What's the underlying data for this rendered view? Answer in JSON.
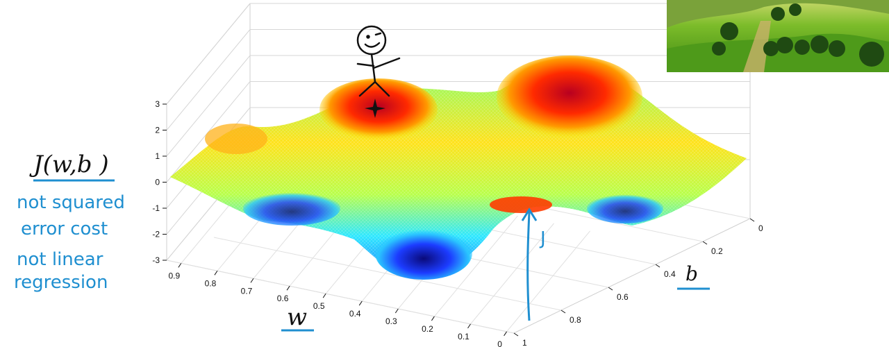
{
  "chart_data": {
    "type": "surface",
    "title": "",
    "z_axis": {
      "label": "J(w,b )",
      "ticks": [
        "3",
        "2",
        "1",
        "0",
        "-1",
        "-2",
        "-3"
      ],
      "range": [
        -3,
        3
      ]
    },
    "w_axis": {
      "label": "w",
      "ticks": [
        "0.9",
        "0.8",
        "0.7",
        "0.6",
        "0.5",
        "0.4",
        "0.3",
        "0.2",
        "0.1",
        "0"
      ],
      "range": [
        0,
        1
      ]
    },
    "b_axis": {
      "label": "b",
      "ticks": [
        "0",
        "0.2",
        "0.4",
        "0.6",
        "0.8",
        "1"
      ],
      "range": [
        0,
        1
      ]
    },
    "grid": true,
    "colormap": "jet",
    "annotations": {
      "side_note": [
        "not squared",
        "error cost",
        "not linear",
        "regression"
      ],
      "arrow_label": "J"
    },
    "colors": {
      "annotation_blue": "#1f8fd0",
      "surface_high": "#c8102e",
      "surface_low": "#1a1a8a",
      "surface_mid": "#7fff7f"
    }
  },
  "decorations": {
    "stick_figure": "stick-figure-on-peak",
    "landscape_photo": "landscape-photo"
  }
}
